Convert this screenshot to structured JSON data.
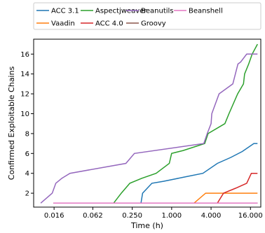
{
  "chart_data": {
    "type": "line",
    "title": "",
    "xlabel": "Time (h)",
    "ylabel": "Confirmed Exploitable Chains",
    "xscale": "log2",
    "xlim": [
      0.0078,
      23.0
    ],
    "ylim": [
      0.6,
      17.5
    ],
    "xticks": [
      0.016,
      0.0625,
      0.25,
      1.0,
      4.0,
      16.0
    ],
    "xtick_labels": [
      "0.016",
      "0.062",
      "0.250",
      "1.000",
      "4.000",
      "16.000"
    ],
    "yticks": [
      2,
      4,
      6,
      8,
      10,
      12,
      14,
      16
    ],
    "ytick_labels": [
      "2",
      "4",
      "6",
      "8",
      "10",
      "12",
      "14",
      "16"
    ],
    "grid": false,
    "legend": {
      "placement": "top",
      "columns": 4
    },
    "series": [
      {
        "name": "ACC 3.1",
        "color": "#1f77b4",
        "points": [
          [
            0.0156,
            1
          ],
          [
            0.34,
            1
          ],
          [
            0.36,
            2
          ],
          [
            0.5,
            3
          ],
          [
            0.75,
            3.2
          ],
          [
            1.5,
            3.6
          ],
          [
            3.0,
            4
          ],
          [
            5.0,
            5
          ],
          [
            8.0,
            5.6
          ],
          [
            12.0,
            6.2
          ],
          [
            18.0,
            7
          ],
          [
            20.5,
            7
          ]
        ]
      },
      {
        "name": "Vaadin",
        "color": "#ff7f0e",
        "points": [
          [
            0.0156,
            1
          ],
          [
            2.2,
            1
          ],
          [
            3.3,
            2
          ],
          [
            20.5,
            2
          ]
        ]
      },
      {
        "name": "Aspectjweaver",
        "color": "#2ca02c",
        "points": [
          [
            0.0156,
            1
          ],
          [
            0.13,
            1
          ],
          [
            0.17,
            2
          ],
          [
            0.23,
            3
          ],
          [
            0.35,
            3.5
          ],
          [
            0.58,
            4
          ],
          [
            0.92,
            5
          ],
          [
            1.0,
            6
          ],
          [
            1.5,
            6.3
          ],
          [
            3.2,
            7
          ],
          [
            3.6,
            8
          ],
          [
            6.5,
            9
          ],
          [
            7.5,
            10
          ],
          [
            10.2,
            12
          ],
          [
            12.5,
            13
          ],
          [
            13.0,
            14
          ],
          [
            15.0,
            15
          ],
          [
            17.0,
            16
          ],
          [
            20.5,
            17
          ]
        ]
      },
      {
        "name": "ACC 4.0",
        "color": "#d62728",
        "points": [
          [
            0.0156,
            1
          ],
          [
            5.0,
            1
          ],
          [
            6.2,
            2
          ],
          [
            9.5,
            2.5
          ],
          [
            14.0,
            3
          ],
          [
            16.5,
            4
          ],
          [
            20.5,
            4
          ]
        ]
      },
      {
        "name": "Beanutils",
        "color": "#9467bd",
        "points": [
          [
            0.0156,
            1
          ],
          [
            20.5,
            1
          ]
        ]
      },
      {
        "name": "Groovy",
        "color": "#8c564b",
        "points": [
          [
            0.0156,
            1
          ],
          [
            20.5,
            1
          ]
        ]
      },
      {
        "name": "Beanshell",
        "color": "#e377c2",
        "points": [
          [
            0.0156,
            1
          ],
          [
            20.5,
            1
          ]
        ]
      },
      {
        "name": "",
        "color": "#9467bd",
        "points": [
          [
            0.01,
            1
          ],
          [
            0.015,
            2
          ],
          [
            0.017,
            3
          ],
          [
            0.021,
            3.5
          ],
          [
            0.028,
            4
          ],
          [
            0.2,
            5
          ],
          [
            0.27,
            6
          ],
          [
            3.1,
            7
          ],
          [
            3.5,
            8
          ],
          [
            4.0,
            9
          ],
          [
            4.1,
            10
          ],
          [
            5.3,
            12
          ],
          [
            8.6,
            13
          ],
          [
            10.3,
            15
          ],
          [
            11.3,
            15.2
          ],
          [
            14.0,
            16
          ],
          [
            20.5,
            16
          ]
        ]
      }
    ]
  }
}
